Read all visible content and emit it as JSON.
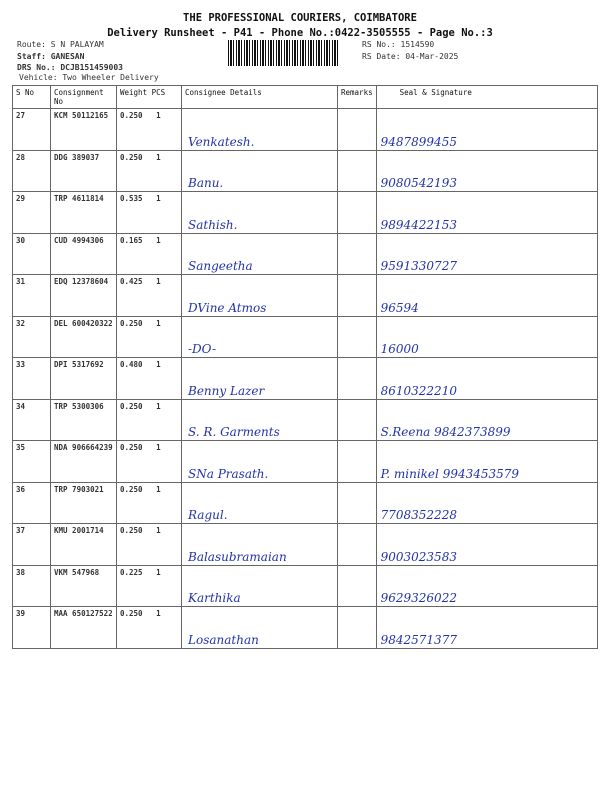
{
  "header": {
    "company": "THE PROFESSIONAL COURIERS, COIMBATORE",
    "subtitle": "Delivery Runsheet - P41 - Phone No.:0422-3505555 - Page No.:3",
    "route": "Route: S N PALAYAM",
    "staff": "Staff: GANESAN",
    "drs": "DRS No.: DCJB151459003",
    "vehicle": "Vehicle: Two Wheeler Delivery",
    "rs_no": "RS No.: 1514590",
    "rs_date": "RS Date: 04-Mar-2025"
  },
  "columns": [
    "S No",
    "Consignment No",
    "Weight  PCS",
    "Consignee Details",
    "Remarks",
    "Seal & Signature"
  ],
  "rows": [
    {
      "sno": "27",
      "cn": "KCM 50112165",
      "weight": "0.250",
      "pcs": "1",
      "consignee": "Venkatesh.",
      "signature": "9487899455"
    },
    {
      "sno": "28",
      "cn": "DDG 389037",
      "weight": "0.250",
      "pcs": "1",
      "consignee": "Banu.",
      "signature": "9080542193"
    },
    {
      "sno": "29",
      "cn": "TRP 4611814",
      "weight": "0.535",
      "pcs": "1",
      "consignee": "Sathish.",
      "signature": "9894422153"
    },
    {
      "sno": "30",
      "cn": "CUD 4994306",
      "weight": "0.165",
      "pcs": "1",
      "consignee": "Sangeetha",
      "signature": "9591330727"
    },
    {
      "sno": "31",
      "cn": "EDQ 12378604",
      "weight": "0.425",
      "pcs": "1",
      "consignee": "DVine Atmos",
      "signature": "96594"
    },
    {
      "sno": "32",
      "cn": "DEL 600420322",
      "weight": "0.250",
      "pcs": "1",
      "consignee": "-DO-",
      "signature": "16000"
    },
    {
      "sno": "33",
      "cn": "DPI 5317692",
      "weight": "0.480",
      "pcs": "1",
      "consignee": "Benny Lazer",
      "signature": "8610322210"
    },
    {
      "sno": "34",
      "cn": "TRP 5300306",
      "weight": "0.250",
      "pcs": "1",
      "consignee": "S. R. Garments",
      "signature": "S.Reena 9842373899"
    },
    {
      "sno": "35",
      "cn": "NDA 906664239",
      "weight": "0.250",
      "pcs": "1",
      "consignee": "SNa Prasath.",
      "signature": "P. minikel  9943453579"
    },
    {
      "sno": "36",
      "cn": "TRP 7903021",
      "weight": "0.250",
      "pcs": "1",
      "consignee": "Ragul.",
      "signature": "7708352228"
    },
    {
      "sno": "37",
      "cn": "KMU 2001714",
      "weight": "0.250",
      "pcs": "1",
      "consignee": "Balasubramaian",
      "signature": "9003023583"
    },
    {
      "sno": "38",
      "cn": "VKM 547968",
      "weight": "0.225",
      "pcs": "1",
      "consignee": "Karthika",
      "signature": "9629326022"
    },
    {
      "sno": "39",
      "cn": "MAA 650127522",
      "weight": "0.250",
      "pcs": "1",
      "consignee": "Losanathan",
      "signature": "9842571377"
    }
  ],
  "colors": {
    "ink": "#2233aa"
  }
}
